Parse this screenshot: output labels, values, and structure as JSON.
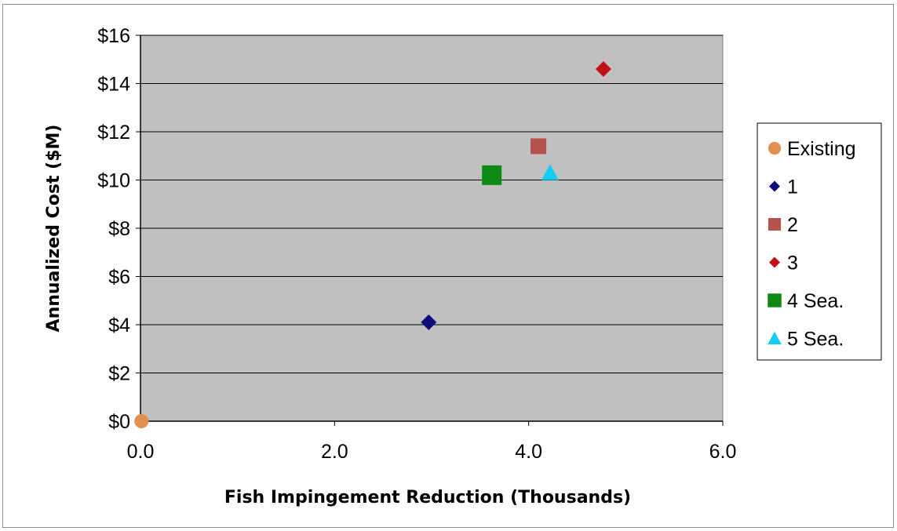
{
  "chart_data": {
    "type": "scatter",
    "title": "",
    "xlabel": "Fish Impingement Reduction (Thousands)",
    "ylabel": "Annualized Cost ($M)",
    "xlim": [
      0,
      6
    ],
    "ylim": [
      0,
      16
    ],
    "x_ticks": [
      {
        "value": 0,
        "label": "0.0"
      },
      {
        "value": 2,
        "label": "2.0"
      },
      {
        "value": 4,
        "label": "4.0"
      },
      {
        "value": 6,
        "label": "6.0"
      }
    ],
    "y_ticks": [
      {
        "value": 0,
        "label": "$0"
      },
      {
        "value": 2,
        "label": "$2"
      },
      {
        "value": 4,
        "label": "$4"
      },
      {
        "value": 6,
        "label": "$6"
      },
      {
        "value": 8,
        "label": "$8"
      },
      {
        "value": 10,
        "label": "$10"
      },
      {
        "value": 12,
        "label": "$12"
      },
      {
        "value": 14,
        "label": "$14"
      },
      {
        "value": 16,
        "label": "$16"
      }
    ],
    "grid": "horizontal",
    "plot_background": "#c0c0c0",
    "legend_position": "right",
    "series": [
      {
        "name": "Existing",
        "marker": "circle",
        "color": "#e1914f",
        "points": [
          {
            "x": 0.01,
            "y": 0.0
          }
        ]
      },
      {
        "name": "1",
        "marker": "diamond",
        "color": "#0d0d80",
        "points": [
          {
            "x": 2.97,
            "y": 4.1
          }
        ]
      },
      {
        "name": "2",
        "marker": "square",
        "color": "#b5524e",
        "points": [
          {
            "x": 4.1,
            "y": 11.4
          }
        ]
      },
      {
        "name": "3",
        "marker": "diamond",
        "color": "#c0101a",
        "points": [
          {
            "x": 4.77,
            "y": 14.6
          }
        ]
      },
      {
        "name": "4 Sea.",
        "marker": "square-large",
        "color": "#0e8a14",
        "points": [
          {
            "x": 3.62,
            "y": 10.2
          }
        ]
      },
      {
        "name": "5 Sea.",
        "marker": "triangle",
        "color": "#14ccf5",
        "points": [
          {
            "x": 4.22,
            "y": 10.3
          }
        ]
      }
    ]
  }
}
